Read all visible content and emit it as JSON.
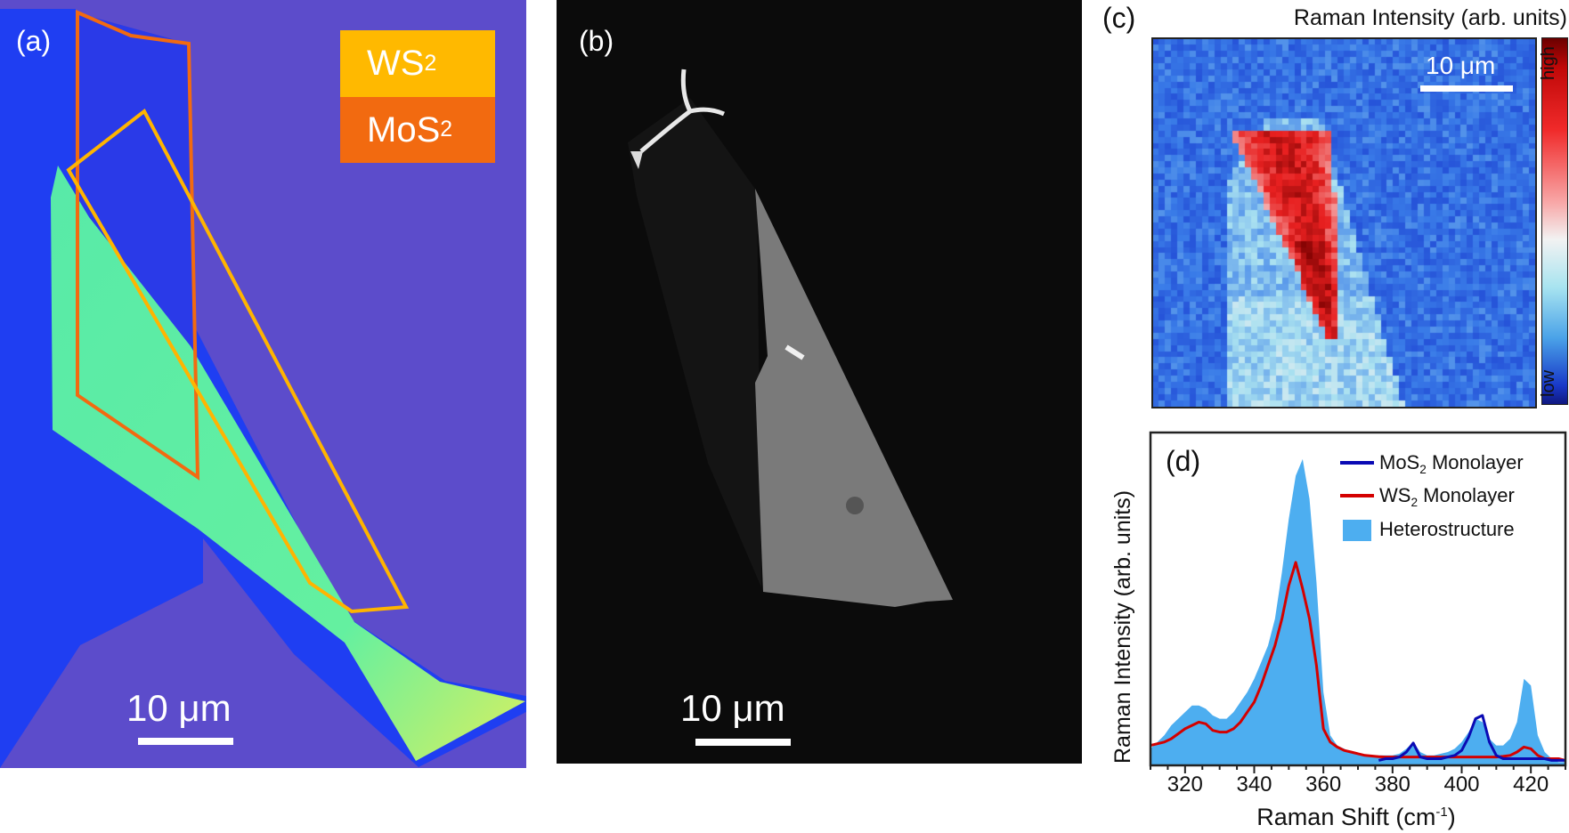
{
  "panel_a": {
    "label": "(a)",
    "legend": [
      {
        "text": "WS",
        "sub": "2",
        "color": "#ffb900"
      },
      {
        "text": "MoS",
        "sub": "2",
        "color": "#f26a10"
      }
    ],
    "scale_bar": "10 μm",
    "colors": {
      "substrate": "#5c4ccb",
      "monolayer_blue": "#1f3ef2",
      "flake_green": "#5ef0a0"
    }
  },
  "panel_b": {
    "label": "(b)",
    "scale_bar": "10 μm"
  },
  "panel_c": {
    "label": "(c)",
    "title": "Raman Intensity (arb. units)",
    "scale_bar": "10 μm",
    "colorbar": {
      "high": "high",
      "low": "low"
    }
  },
  "chart_data": {
    "type": "area",
    "label": "(d)",
    "xlabel": "Raman Shift (cm",
    "xlabel_sup": "-1",
    "xlabel_end": ")",
    "ylabel": "Raman Intensity (arb. units)",
    "xlim": [
      310,
      430
    ],
    "ylim": [
      0,
      1
    ],
    "xticks": [
      320,
      340,
      360,
      380,
      400,
      420
    ],
    "grid": false,
    "legend_position": "top-right",
    "series": [
      {
        "name": "MoS",
        "sub": "2",
        "suffix": " Monolayer",
        "kind": "line",
        "color": "#0a0ab4",
        "x": [
          376,
          378,
          380,
          382,
          384,
          386,
          388,
          390,
          392,
          394,
          396,
          398,
          400,
          402,
          404,
          406,
          408,
          410,
          412,
          414,
          416,
          418,
          420,
          422,
          424,
          426,
          428,
          430
        ],
        "y": [
          0.015,
          0.02,
          0.02,
          0.025,
          0.04,
          0.067,
          0.025,
          0.02,
          0.02,
          0.02,
          0.025,
          0.03,
          0.045,
          0.085,
          0.14,
          0.15,
          0.07,
          0.03,
          0.02,
          0.02,
          0.02,
          0.02,
          0.02,
          0.02,
          0.02,
          0.015,
          0.015,
          0.015
        ]
      },
      {
        "name": "WS",
        "sub": "2",
        "suffix": " Monolayer",
        "kind": "line",
        "color": "#d40000",
        "x": [
          310,
          312,
          314,
          316,
          318,
          320,
          322,
          324,
          326,
          328,
          330,
          332,
          334,
          336,
          338,
          340,
          342,
          344,
          346,
          348,
          350,
          352,
          354,
          356,
          358,
          360,
          362,
          364,
          366,
          368,
          370,
          372,
          374,
          376,
          378,
          380,
          382,
          384,
          386,
          388,
          390,
          392,
          394,
          396,
          398,
          400,
          402,
          404,
          406,
          408,
          410,
          412,
          414,
          416,
          418,
          420,
          422,
          424,
          426,
          428,
          430
        ],
        "y": [
          0.06,
          0.065,
          0.07,
          0.08,
          0.095,
          0.11,
          0.12,
          0.13,
          0.125,
          0.105,
          0.1,
          0.1,
          0.11,
          0.13,
          0.16,
          0.19,
          0.24,
          0.3,
          0.36,
          0.44,
          0.54,
          0.61,
          0.53,
          0.44,
          0.3,
          0.11,
          0.07,
          0.055,
          0.045,
          0.04,
          0.035,
          0.03,
          0.028,
          0.026,
          0.025,
          0.025,
          0.025,
          0.025,
          0.025,
          0.025,
          0.025,
          0.025,
          0.025,
          0.025,
          0.025,
          0.025,
          0.025,
          0.025,
          0.025,
          0.025,
          0.025,
          0.027,
          0.03,
          0.04,
          0.055,
          0.05,
          0.03,
          0.02,
          0.02,
          0.02,
          0.015
        ]
      },
      {
        "name": "Heterostructure",
        "sub": "",
        "suffix": "",
        "kind": "fill",
        "color": "#4daef0",
        "x": [
          310,
          312,
          314,
          316,
          318,
          320,
          322,
          324,
          326,
          328,
          330,
          332,
          334,
          336,
          338,
          340,
          342,
          344,
          346,
          348,
          350,
          352,
          354,
          356,
          358,
          360,
          362,
          364,
          366,
          368,
          370,
          372,
          374,
          376,
          378,
          380,
          382,
          384,
          386,
          388,
          390,
          392,
          394,
          396,
          398,
          400,
          402,
          404,
          406,
          408,
          410,
          412,
          414,
          416,
          418,
          420,
          422,
          424,
          426,
          428,
          430
        ],
        "y": [
          0.05,
          0.07,
          0.09,
          0.12,
          0.14,
          0.16,
          0.18,
          0.18,
          0.17,
          0.15,
          0.14,
          0.14,
          0.16,
          0.19,
          0.22,
          0.26,
          0.31,
          0.36,
          0.44,
          0.58,
          0.74,
          0.87,
          0.92,
          0.8,
          0.55,
          0.22,
          0.09,
          0.06,
          0.05,
          0.04,
          0.035,
          0.03,
          0.03,
          0.03,
          0.03,
          0.03,
          0.035,
          0.05,
          0.07,
          0.04,
          0.03,
          0.03,
          0.035,
          0.04,
          0.05,
          0.07,
          0.1,
          0.14,
          0.13,
          0.08,
          0.06,
          0.06,
          0.08,
          0.13,
          0.26,
          0.24,
          0.09,
          0.04,
          0.02,
          0.01,
          0.01
        ]
      }
    ]
  }
}
